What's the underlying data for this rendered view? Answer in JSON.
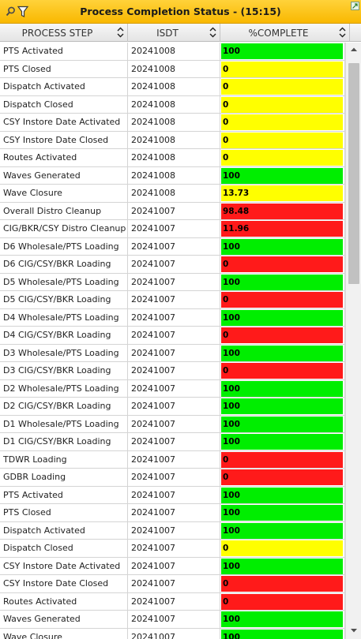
{
  "panel": {
    "title": "Process Completion Status - (15:15)"
  },
  "columns": {
    "step": "PROCESS STEP",
    "isdt": "ISDT",
    "pct": "%COMPLETE"
  },
  "colors": {
    "green": "#00ee00",
    "yellow": "#ffff00",
    "red": "#ff1a1a",
    "titlebar": "#fdc31a"
  },
  "rows": [
    {
      "step": "PTS Activated",
      "isdt": "20241008",
      "pct": "100",
      "status": "green"
    },
    {
      "step": "PTS Closed",
      "isdt": "20241008",
      "pct": "0",
      "status": "yellow"
    },
    {
      "step": "Dispatch Activated",
      "isdt": "20241008",
      "pct": "0",
      "status": "yellow"
    },
    {
      "step": "Dispatch Closed",
      "isdt": "20241008",
      "pct": "0",
      "status": "yellow"
    },
    {
      "step": "CSY Instore Date Activated",
      "isdt": "20241008",
      "pct": "0",
      "status": "yellow"
    },
    {
      "step": "CSY Instore Date Closed",
      "isdt": "20241008",
      "pct": "0",
      "status": "yellow"
    },
    {
      "step": "Routes Activated",
      "isdt": "20241008",
      "pct": "0",
      "status": "yellow"
    },
    {
      "step": "Waves Generated",
      "isdt": "20241008",
      "pct": "100",
      "status": "green"
    },
    {
      "step": "Wave Closure",
      "isdt": "20241008",
      "pct": "13.73",
      "status": "yellow"
    },
    {
      "step": "Overall Distro Cleanup",
      "isdt": "20241007",
      "pct": "98.48",
      "status": "red"
    },
    {
      "step": "CIG/BKR/CSY Distro Cleanup",
      "isdt": "20241007",
      "pct": "11.96",
      "status": "red"
    },
    {
      "step": "D6 Wholesale/PTS Loading",
      "isdt": "20241007",
      "pct": "100",
      "status": "green"
    },
    {
      "step": "D6 CIG/CSY/BKR Loading",
      "isdt": "20241007",
      "pct": "0",
      "status": "red"
    },
    {
      "step": "D5 Wholesale/PTS Loading",
      "isdt": "20241007",
      "pct": "100",
      "status": "green"
    },
    {
      "step": "D5 CIG/CSY/BKR Loading",
      "isdt": "20241007",
      "pct": "0",
      "status": "red"
    },
    {
      "step": "D4 Wholesale/PTS Loading",
      "isdt": "20241007",
      "pct": "100",
      "status": "green"
    },
    {
      "step": "D4 CIG/CSY/BKR Loading",
      "isdt": "20241007",
      "pct": "0",
      "status": "red"
    },
    {
      "step": "D3 Wholesale/PTS Loading",
      "isdt": "20241007",
      "pct": "100",
      "status": "green"
    },
    {
      "step": "D3 CIG/CSY/BKR Loading",
      "isdt": "20241007",
      "pct": "0",
      "status": "red"
    },
    {
      "step": "D2 Wholesale/PTS Loading",
      "isdt": "20241007",
      "pct": "100",
      "status": "green"
    },
    {
      "step": "D2 CIG/CSY/BKR Loading",
      "isdt": "20241007",
      "pct": "100",
      "status": "green"
    },
    {
      "step": "D1 Wholesale/PTS Loading",
      "isdt": "20241007",
      "pct": "100",
      "status": "green"
    },
    {
      "step": "D1 CIG/CSY/BKR Loading",
      "isdt": "20241007",
      "pct": "100",
      "status": "green"
    },
    {
      "step": "TDWR Loading",
      "isdt": "20241007",
      "pct": "0",
      "status": "red"
    },
    {
      "step": "GDBR Loading",
      "isdt": "20241007",
      "pct": "0",
      "status": "red"
    },
    {
      "step": "PTS Activated",
      "isdt": "20241007",
      "pct": "100",
      "status": "green"
    },
    {
      "step": "PTS Closed",
      "isdt": "20241007",
      "pct": "100",
      "status": "green"
    },
    {
      "step": "Dispatch Activated",
      "isdt": "20241007",
      "pct": "100",
      "status": "green"
    },
    {
      "step": "Dispatch Closed",
      "isdt": "20241007",
      "pct": "0",
      "status": "yellow"
    },
    {
      "step": "CSY Instore Date Activated",
      "isdt": "20241007",
      "pct": "100",
      "status": "green"
    },
    {
      "step": "CSY Instore Date Closed",
      "isdt": "20241007",
      "pct": "0",
      "status": "red"
    },
    {
      "step": "Routes Activated",
      "isdt": "20241007",
      "pct": "0",
      "status": "red"
    },
    {
      "step": "Waves Generated",
      "isdt": "20241007",
      "pct": "100",
      "status": "green"
    },
    {
      "step": "Wave Closure",
      "isdt": "20241007",
      "pct": "100",
      "status": "green"
    }
  ],
  "icons": {
    "search": "search-icon",
    "filter": "filter-icon",
    "maximize": "maximize-icon",
    "sort": "sort-arrows-icon",
    "scroll_up": "scroll-up-arrow-icon",
    "scroll_down": "scroll-down-arrow-icon"
  }
}
